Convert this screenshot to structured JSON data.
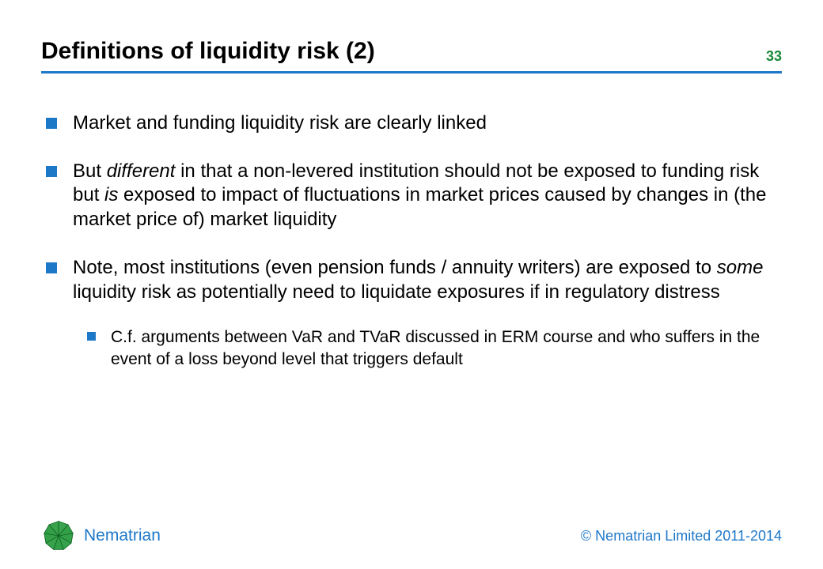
{
  "colors": {
    "title": "#000000",
    "body": "#000000",
    "rule": "#1e78c8",
    "bullet": "#1e78c8",
    "pagenum": "#1a8a3a",
    "brand_text": "#1e78c8",
    "logo_fill": "#2f9e44",
    "logo_stroke": "#0b5a1e",
    "background": "#ffffff"
  },
  "header": {
    "title": "Definitions of liquidity risk (2)",
    "page_number": "33"
  },
  "bullets": [
    {
      "runs": [
        {
          "text": "Market and funding liquidity risk are clearly linked",
          "italic": false
        }
      ]
    },
    {
      "runs": [
        {
          "text": "But ",
          "italic": false
        },
        {
          "text": "different",
          "italic": true
        },
        {
          "text": " in that a non-levered institution should not be exposed to funding risk but ",
          "italic": false
        },
        {
          "text": "is",
          "italic": true
        },
        {
          "text": " exposed to impact of fluctuations in market prices caused by changes in (the market price of) market liquidity",
          "italic": false
        }
      ]
    },
    {
      "runs": [
        {
          "text": "Note, most institutions (even pension funds / annuity writers) are exposed to ",
          "italic": false
        },
        {
          "text": "some",
          "italic": true
        },
        {
          "text": " liquidity risk as potentially need to liquidate exposures if in regulatory distress",
          "italic": false
        }
      ],
      "children": [
        {
          "runs": [
            {
              "text": "C.f. arguments between VaR and TVaR discussed in ERM course and who suffers in the event of a loss beyond level that triggers default",
              "italic": false
            }
          ]
        }
      ]
    }
  ],
  "footer": {
    "brand_name": "Nematrian",
    "copyright": "© Nematrian Limited 2011-2014"
  }
}
